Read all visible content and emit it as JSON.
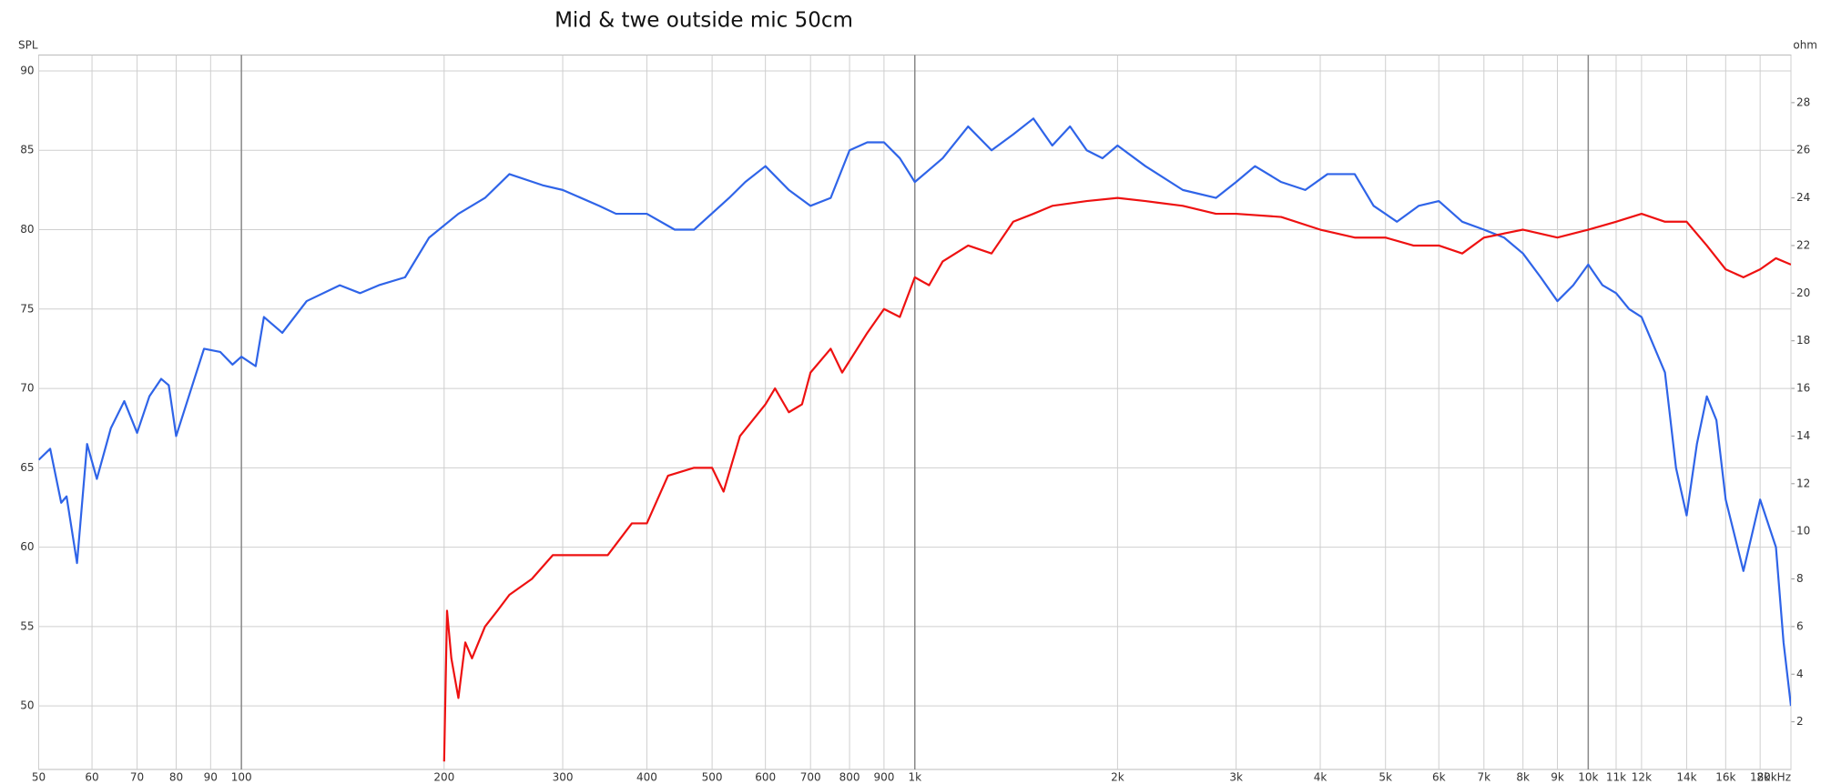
{
  "chart_data": {
    "type": "line",
    "title": "Mid & twe outside mic 50cm",
    "ylabel": "SPL",
    "y2label": "ohm",
    "xlog": true,
    "grid": true,
    "xlim": [
      50,
      20000
    ],
    "xticks": [
      50,
      60,
      70,
      80,
      90,
      100,
      200,
      300,
      400,
      500,
      600,
      700,
      800,
      900,
      {
        "value": 1000,
        "label": "1k"
      },
      {
        "value": 2000,
        "label": "2k"
      },
      {
        "value": 3000,
        "label": "3k"
      },
      {
        "value": 4000,
        "label": "4k"
      },
      {
        "value": 5000,
        "label": "5k"
      },
      {
        "value": 6000,
        "label": "6k"
      },
      {
        "value": 7000,
        "label": "7k"
      },
      {
        "value": 8000,
        "label": "8k"
      },
      {
        "value": 9000,
        "label": "9k"
      },
      {
        "value": 10000,
        "label": "10k"
      },
      {
        "value": 11000,
        "label": "11k"
      },
      {
        "value": 12000,
        "label": "12k"
      },
      {
        "value": 14000,
        "label": "14k"
      },
      {
        "value": 16000,
        "label": "16k"
      },
      {
        "value": 18000,
        "label": "18k"
      },
      {
        "value": 20000,
        "label": "20kHz"
      }
    ],
    "ylim": [
      46,
      91
    ],
    "yticks": [
      50,
      55,
      60,
      65,
      70,
      75,
      80,
      85,
      90
    ],
    "y2lim": [
      0,
      30
    ],
    "y2ticks": [
      2,
      4,
      6,
      8,
      10,
      12,
      14,
      16,
      18,
      20,
      22,
      24,
      26,
      28
    ],
    "series": [
      {
        "color": "#2f64e8",
        "x": [
          50,
          52,
          54,
          55,
          57,
          59,
          61,
          64,
          67,
          70,
          73,
          76,
          78,
          80,
          85,
          88,
          93,
          97,
          100,
          105,
          108,
          115,
          125,
          140,
          150,
          160,
          175,
          190,
          210,
          230,
          250,
          280,
          300,
          340,
          360,
          400,
          440,
          470,
          530,
          560,
          600,
          650,
          700,
          750,
          800,
          850,
          900,
          950,
          1000,
          1100,
          1200,
          1300,
          1400,
          1500,
          1600,
          1700,
          1800,
          1900,
          2000,
          2200,
          2500,
          2800,
          3000,
          3200,
          3500,
          3800,
          4100,
          4500,
          4800,
          5200,
          5600,
          6000,
          6500,
          7000,
          7500,
          8000,
          8500,
          9000,
          9500,
          10000,
          10500,
          11000,
          11500,
          12000,
          13000,
          13500,
          14000,
          14500,
          15000,
          15500,
          16000,
          17000,
          18000,
          19000,
          19500,
          20000
        ],
        "values": [
          65.5,
          66.2,
          62.8,
          63.2,
          59,
          66.5,
          64.3,
          67.5,
          69.2,
          67.2,
          69.5,
          70.6,
          70.2,
          67,
          70.5,
          72.5,
          72.3,
          71.5,
          72,
          71.4,
          74.5,
          73.5,
          75.5,
          76.5,
          76,
          76.5,
          77,
          79.5,
          81,
          82,
          83.5,
          82.8,
          82.5,
          81.5,
          81,
          81,
          80,
          80,
          82,
          83,
          84,
          82.5,
          81.5,
          82,
          85,
          85.5,
          85.5,
          84.5,
          83,
          84.5,
          86.5,
          85,
          86,
          87,
          85.3,
          86.5,
          85,
          84.5,
          85.3,
          84,
          82.5,
          82,
          83,
          84,
          83,
          82.5,
          83.5,
          83.5,
          81.5,
          80.5,
          81.5,
          81.8,
          80.5,
          80,
          79.5,
          78.5,
          77,
          75.5,
          76.5,
          77.8,
          76.5,
          76,
          75,
          74.5,
          71,
          65,
          62,
          66.5,
          69.5,
          68,
          63,
          58.5,
          63,
          60,
          54,
          50
        ]
      },
      {
        "color": "#ee1111",
        "x": [
          200,
          202,
          205,
          210,
          215,
          220,
          230,
          240,
          250,
          270,
          290,
          320,
          350,
          380,
          400,
          430,
          470,
          500,
          520,
          550,
          600,
          620,
          650,
          680,
          700,
          750,
          780,
          850,
          900,
          950,
          1000,
          1050,
          1100,
          1200,
          1300,
          1400,
          1500,
          1600,
          1800,
          2000,
          2200,
          2500,
          2800,
          3000,
          3500,
          4000,
          4500,
          5000,
          5500,
          6000,
          6500,
          7000,
          8000,
          9000,
          10000,
          11000,
          12000,
          13000,
          14000,
          15000,
          16000,
          17000,
          18000,
          19000,
          20000
        ],
        "values": [
          46.5,
          56,
          53,
          50.5,
          54,
          53,
          55,
          56,
          57,
          58,
          59.5,
          59.5,
          59.5,
          61.5,
          61.5,
          64.5,
          65,
          65,
          63.5,
          67,
          69,
          70,
          68.5,
          69,
          71,
          72.5,
          71,
          73.5,
          75,
          74.5,
          77,
          76.5,
          78,
          79,
          78.5,
          80.5,
          81,
          81.5,
          81.8,
          82,
          81.8,
          81.5,
          81,
          81,
          80.8,
          80,
          79.5,
          79.5,
          79,
          79,
          78.5,
          79.5,
          80,
          79.5,
          80,
          80.5,
          81,
          80.5,
          80.5,
          79,
          77.5,
          77,
          77.5,
          78.2,
          77.8
        ]
      }
    ]
  }
}
